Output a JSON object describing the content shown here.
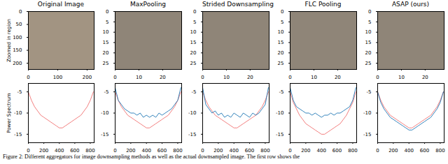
{
  "titles": [
    "Original Image",
    "MaxPooling",
    "Strided Downsampling",
    "FLC Pooling",
    "ASAP (ours)"
  ],
  "caption": "Figure 2: Different aggregators for image downsampling methods as well as the actual downsampled image. The first row shows the",
  "zoom_panels": [
    {
      "ylabel": "Zoomed in region",
      "xlim": [
        0,
        224
      ],
      "ylim": [
        0,
        224
      ],
      "xticks": [
        0,
        100,
        200
      ],
      "yticks": [
        0,
        50,
        100,
        150,
        200
      ]
    },
    {
      "xlim": [
        0,
        28
      ],
      "ylim": [
        0,
        28
      ],
      "xticks": [
        0,
        10,
        20
      ],
      "yticks": [
        0,
        5,
        10,
        15,
        20,
        25
      ]
    },
    {
      "xlim": [
        0,
        28
      ],
      "ylim": [
        0,
        28
      ],
      "xticks": [
        0,
        10,
        20
      ],
      "yticks": [
        0,
        5,
        10,
        15,
        20,
        25
      ]
    },
    {
      "xlim": [
        0,
        28
      ],
      "ylim": [
        0,
        28
      ],
      "xticks": [
        0,
        10,
        20
      ],
      "yticks": [
        0,
        5,
        10,
        15,
        20,
        25
      ]
    },
    {
      "xlim": [
        0,
        28
      ],
      "ylim": [
        0,
        28
      ],
      "xticks": [
        0,
        10,
        20
      ],
      "yticks": [
        0,
        5,
        10,
        15,
        20,
        25
      ]
    }
  ],
  "chart_data": [
    {
      "type": "line",
      "ylabel": "Power Spectrum",
      "x": [
        0,
        40,
        80,
        120,
        160,
        200,
        240,
        280,
        320,
        360,
        400,
        440,
        480,
        520,
        560,
        600,
        640,
        680,
        720,
        760,
        800,
        840
      ],
      "xlim": [
        0,
        850
      ],
      "ylim": [
        -17,
        -3
      ],
      "xticks": [
        0,
        200,
        400,
        600,
        800
      ],
      "yticks": [
        -15,
        -10,
        -5
      ],
      "series": [
        {
          "color": "#f07070",
          "values": [
            -5,
            -7,
            -8.5,
            -9.5,
            -10.5,
            -11,
            -11.5,
            -12,
            -12.5,
            -13,
            -13.5,
            -13.5,
            -13,
            -12.5,
            -12,
            -11.5,
            -11,
            -10.5,
            -9.5,
            -8.5,
            -7,
            -5
          ]
        }
      ]
    },
    {
      "type": "line",
      "x": [
        0,
        40,
        80,
        120,
        160,
        200,
        240,
        280,
        320,
        360,
        400,
        440,
        480,
        520,
        560,
        600,
        640,
        680,
        720,
        760,
        800,
        840
      ],
      "xlim": [
        0,
        850
      ],
      "ylim": [
        -17,
        -3
      ],
      "xticks": [
        0,
        200,
        400,
        600,
        800
      ],
      "yticks": [
        -15,
        -10,
        -5
      ],
      "series": [
        {
          "color": "#f07070",
          "values": [
            -5,
            -7,
            -8.5,
            -9.5,
            -10.5,
            -11,
            -11.5,
            -12,
            -12.5,
            -13,
            -13.5,
            -13.5,
            -13,
            -12.5,
            -12,
            -11.5,
            -11,
            -10.5,
            -9.5,
            -8.5,
            -7,
            -5
          ]
        },
        {
          "color": "#1f77b4",
          "values": [
            -4,
            -7,
            -8,
            -9,
            -9.5,
            -10,
            -10,
            -10.5,
            -10,
            -11,
            -10.5,
            -11,
            -10.5,
            -11,
            -10,
            -10.5,
            -10,
            -9.5,
            -9,
            -8,
            -7,
            -4
          ]
        }
      ]
    },
    {
      "type": "line",
      "x": [
        0,
        40,
        80,
        120,
        160,
        200,
        240,
        280,
        320,
        360,
        400,
        440,
        480,
        520,
        560,
        600,
        640,
        680,
        720,
        760,
        800,
        840
      ],
      "xlim": [
        0,
        850
      ],
      "ylim": [
        -17,
        -3
      ],
      "xticks": [
        0,
        200,
        400,
        600,
        800
      ],
      "yticks": [
        -15,
        -10,
        -5
      ],
      "series": [
        {
          "color": "#f07070",
          "values": [
            -5,
            -7,
            -8.5,
            -9.5,
            -10.5,
            -11,
            -11.5,
            -12,
            -12.5,
            -13,
            -13.5,
            -13.5,
            -13,
            -12.5,
            -12,
            -11.5,
            -11,
            -10.5,
            -9.5,
            -8.5,
            -7,
            -5
          ]
        },
        {
          "color": "#1f77b4",
          "values": [
            -4,
            -8,
            -9,
            -10,
            -9.5,
            -10.5,
            -10,
            -11,
            -10.5,
            -11,
            -10,
            -10.5,
            -11,
            -10,
            -10.5,
            -11,
            -10,
            -10.5,
            -10,
            -9,
            -8,
            -4
          ]
        }
      ]
    },
    {
      "type": "line",
      "x": [
        0,
        40,
        80,
        120,
        160,
        200,
        240,
        280,
        320,
        360,
        400,
        440,
        480,
        520,
        560,
        600,
        640,
        680,
        720,
        760,
        800,
        840
      ],
      "xlim": [
        0,
        850
      ],
      "ylim": [
        -17,
        -3
      ],
      "xticks": [
        0,
        200,
        400,
        600,
        800
      ],
      "yticks": [
        -15,
        -10,
        -5
      ],
      "series": [
        {
          "color": "#f07070",
          "values": [
            -5,
            -7.5,
            -9,
            -10.5,
            -11.5,
            -12.5,
            -13,
            -13.5,
            -14,
            -14.5,
            -15,
            -15,
            -14.5,
            -14,
            -13.5,
            -13,
            -12.5,
            -11.5,
            -10.5,
            -9,
            -7.5,
            -5
          ]
        },
        {
          "color": "#1f77b4",
          "values": [
            -4,
            -7,
            -8.5,
            -9,
            -9.5,
            -10,
            -10,
            -10.5,
            -10,
            -10.5,
            -11,
            -10.5,
            -10.5,
            -10,
            -10.5,
            -10,
            -10,
            -9.5,
            -9,
            -8.5,
            -7,
            -4
          ]
        }
      ]
    },
    {
      "type": "line",
      "x": [
        0,
        40,
        80,
        120,
        160,
        200,
        240,
        280,
        320,
        360,
        400,
        440,
        480,
        520,
        560,
        600,
        640,
        680,
        720,
        760,
        800,
        840
      ],
      "xlim": [
        0,
        850
      ],
      "ylim": [
        -17,
        -3
      ],
      "xticks": [
        0,
        200,
        400,
        600,
        800
      ],
      "yticks": [
        -15,
        -10,
        -5
      ],
      "series": [
        {
          "color": "#f07070",
          "values": [
            -5,
            -7,
            -8.5,
            -9.5,
            -10.5,
            -11,
            -11.5,
            -12,
            -12.5,
            -13,
            -13.5,
            -13.5,
            -13,
            -12.5,
            -12,
            -11.5,
            -11,
            -10.5,
            -9.5,
            -8.5,
            -7,
            -5
          ]
        },
        {
          "color": "#1f77b4",
          "values": [
            -5,
            -7.5,
            -9,
            -10,
            -11,
            -11.5,
            -12,
            -12.5,
            -13,
            -13.5,
            -14,
            -14,
            -13.5,
            -13,
            -12.5,
            -12,
            -11.5,
            -11,
            -10,
            -9,
            -7.5,
            -5
          ]
        }
      ]
    }
  ]
}
